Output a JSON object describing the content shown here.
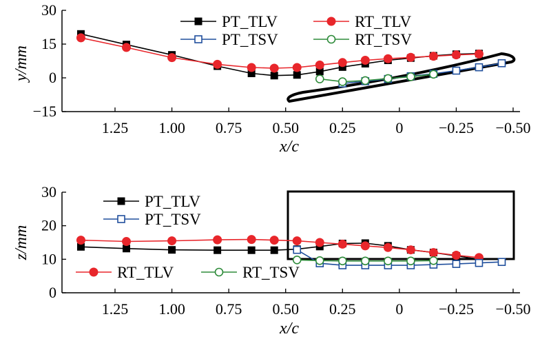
{
  "chart_data": [
    {
      "type": "line",
      "xlabel": "x/c",
      "ylabel": "y/mm",
      "xlim": [
        1.45,
        -0.5
      ],
      "ylim": [
        -15,
        30
      ],
      "x_reversed": true,
      "xticks": [
        "1.25",
        "1.00",
        "0.75",
        "0.50",
        "0.25",
        "0",
        "−0.25",
        "−0.50"
      ],
      "xtick_values": [
        1.25,
        1.0,
        0.75,
        0.5,
        0.25,
        0,
        -0.25,
        -0.5
      ],
      "yticks": [
        "−15",
        "0",
        "15",
        "30"
      ],
      "ytick_values": [
        -15,
        0,
        15,
        30
      ],
      "legend_position": "top-center",
      "series": [
        {
          "name": "PT_TLV",
          "color": "#000000",
          "marker": "filled-square",
          "x": [
            1.4,
            1.2,
            1.0,
            0.8,
            0.65,
            0.55,
            0.45,
            0.35,
            0.25,
            0.15,
            0.05,
            -0.05,
            -0.15,
            -0.25,
            -0.35
          ],
          "y": [
            19.5,
            14.8,
            10.2,
            5.2,
            2.0,
            1.0,
            1.3,
            2.8,
            4.8,
            6.3,
            7.8,
            8.8,
            9.8,
            10.5,
            10.8
          ]
        },
        {
          "name": "RT_TLV",
          "color": "#e8262b",
          "marker": "filled-circle",
          "x": [
            1.4,
            1.2,
            1.0,
            0.8,
            0.65,
            0.55,
            0.45,
            0.35,
            0.25,
            0.15,
            0.05,
            -0.05,
            -0.15,
            -0.25,
            -0.35
          ],
          "y": [
            17.8,
            13.5,
            9.0,
            6.0,
            4.6,
            4.3,
            4.6,
            5.7,
            6.8,
            7.8,
            8.5,
            9.1,
            9.6,
            10.2,
            10.6
          ]
        },
        {
          "name": "PT_TSV",
          "color": "#1f4e9c",
          "marker": "open-square",
          "x": [
            0.25,
            0.15,
            0.05,
            -0.05,
            -0.15,
            -0.25,
            -0.35,
            -0.45
          ],
          "y": [
            -2.5,
            -1.5,
            -0.5,
            0.7,
            1.8,
            3.2,
            4.7,
            6.5
          ]
        },
        {
          "name": "RT_TSV",
          "color": "#2e8b3a",
          "marker": "open-circle",
          "x": [
            0.35,
            0.25,
            0.15,
            0.05,
            -0.05,
            -0.15
          ],
          "y": [
            -0.5,
            -1.7,
            -1.2,
            -0.3,
            0.5,
            1.6
          ]
        }
      ]
    },
    {
      "type": "line",
      "xlabel": "x/c",
      "ylabel": "z/mm",
      "xlim": [
        1.45,
        -0.5
      ],
      "ylim": [
        0,
        30
      ],
      "x_reversed": true,
      "xticks": [
        "1.25",
        "1.00",
        "0.75",
        "0.50",
        "0.25",
        "0",
        "−0.25",
        "−0.50"
      ],
      "xtick_values": [
        1.25,
        1.0,
        0.75,
        0.5,
        0.25,
        0,
        -0.25,
        -0.5
      ],
      "yticks": [
        "0",
        "10",
        "20",
        "30"
      ],
      "ytick_values": [
        0,
        10,
        20,
        30
      ],
      "legend_position": "split: top-left and lower-left",
      "series": [
        {
          "name": "PT_TLV",
          "color": "#000000",
          "marker": "filled-square",
          "x": [
            1.4,
            1.2,
            1.0,
            0.8,
            0.65,
            0.55,
            0.45,
            0.35,
            0.25,
            0.15,
            0.05,
            -0.05,
            -0.15,
            -0.25,
            -0.35
          ],
          "y": [
            13.7,
            13.2,
            12.8,
            12.7,
            12.7,
            12.7,
            13.0,
            13.8,
            14.7,
            14.8,
            14.0,
            12.8,
            12.0,
            11.0,
            10.0
          ]
        },
        {
          "name": "RT_TLV",
          "color": "#e8262b",
          "marker": "filled-circle",
          "x": [
            1.4,
            1.2,
            1.0,
            0.8,
            0.65,
            0.55,
            0.45,
            0.35,
            0.25,
            0.15,
            0.05,
            -0.05,
            -0.15,
            -0.25,
            -0.35
          ],
          "y": [
            15.7,
            15.3,
            15.5,
            15.8,
            15.9,
            15.7,
            15.5,
            15.0,
            14.5,
            14.0,
            13.5,
            12.8,
            12.0,
            11.2,
            10.5
          ]
        },
        {
          "name": "PT_TSV",
          "color": "#1f4e9c",
          "marker": "open-square",
          "x": [
            0.45,
            0.35,
            0.25,
            0.15,
            0.05,
            -0.05,
            -0.15,
            -0.25,
            -0.35,
            -0.45
          ],
          "y": [
            12.8,
            8.8,
            8.2,
            8.2,
            8.2,
            8.2,
            8.4,
            8.6,
            8.9,
            9.2
          ]
        },
        {
          "name": "RT_TSV",
          "color": "#2e8b3a",
          "marker": "open-circle",
          "x": [
            0.45,
            0.35,
            0.25,
            0.15,
            0.05,
            -0.05,
            -0.15
          ],
          "y": [
            9.8,
            9.6,
            9.5,
            9.5,
            9.5,
            9.5,
            9.6
          ]
        }
      ]
    }
  ]
}
